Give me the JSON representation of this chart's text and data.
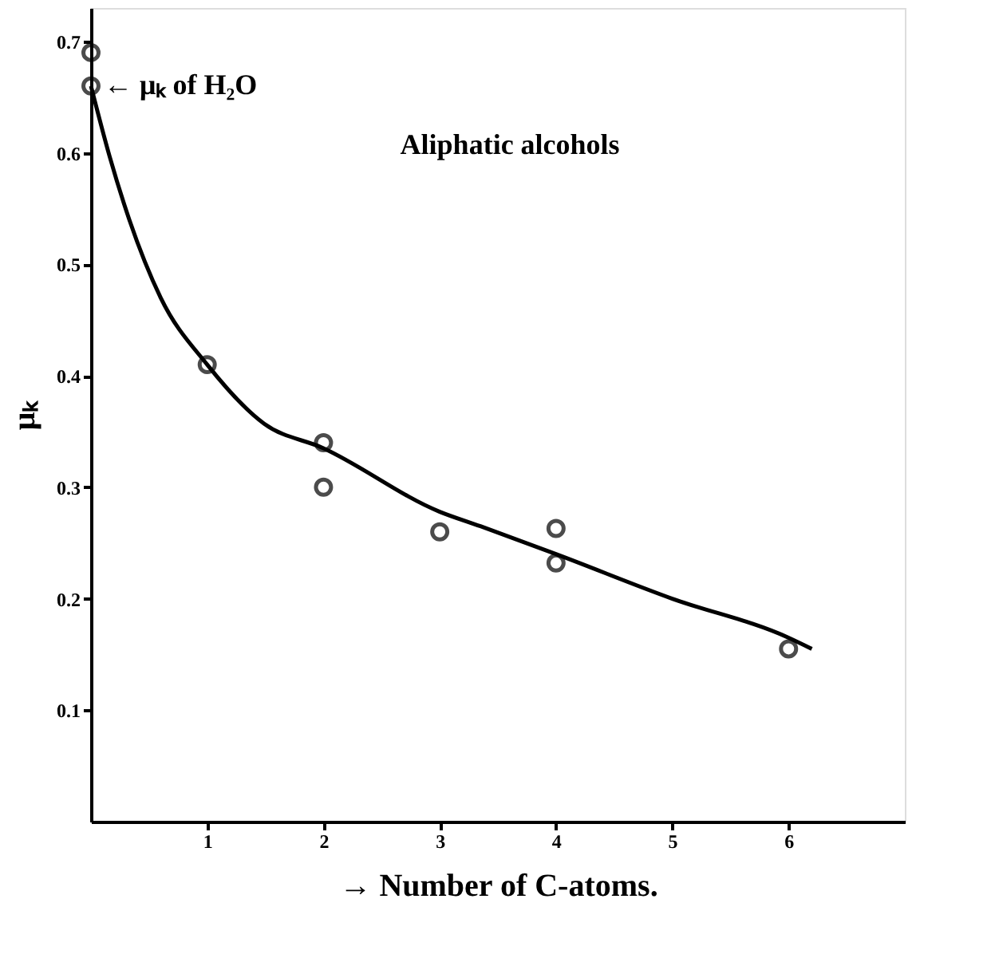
{
  "chart_data": {
    "type": "scatter",
    "xlabel": "→ Number of C-atoms.",
    "ylabel": "μₖ",
    "xlim": [
      0,
      7
    ],
    "ylim": [
      0,
      0.73
    ],
    "xticks": [
      1,
      2,
      3,
      4,
      5,
      6
    ],
    "yticks": [
      0.1,
      0.2,
      0.3,
      0.4,
      0.5,
      0.6,
      0.7
    ],
    "grid": false,
    "marker": "circle",
    "series": [
      {
        "type": "scatter",
        "color": "#000000",
        "x": [
          0,
          0,
          1,
          2,
          2,
          3,
          4,
          4,
          6
        ],
        "values": [
          0.69,
          0.66,
          0.41,
          0.34,
          0.3,
          0.26,
          0.263,
          0.232,
          0.155
        ]
      },
      {
        "type": "line",
        "color": "#000000",
        "line_style": "solid",
        "marker": "none",
        "x": [
          0,
          0.16,
          0.33,
          0.6,
          1,
          1.49,
          2,
          3,
          3.35,
          4,
          5,
          6,
          6.2
        ],
        "values": [
          0.66,
          0.597,
          0.54,
          0.47,
          0.41,
          0.357,
          0.335,
          0.278,
          0.265,
          0.24,
          0.2,
          0.165,
          0.155
        ]
      }
    ],
    "annotations": [
      {
        "text": "← μₖ of H₂O",
        "x": 0,
        "y": 0.66
      },
      "Aliphatic alcohols"
    ]
  }
}
